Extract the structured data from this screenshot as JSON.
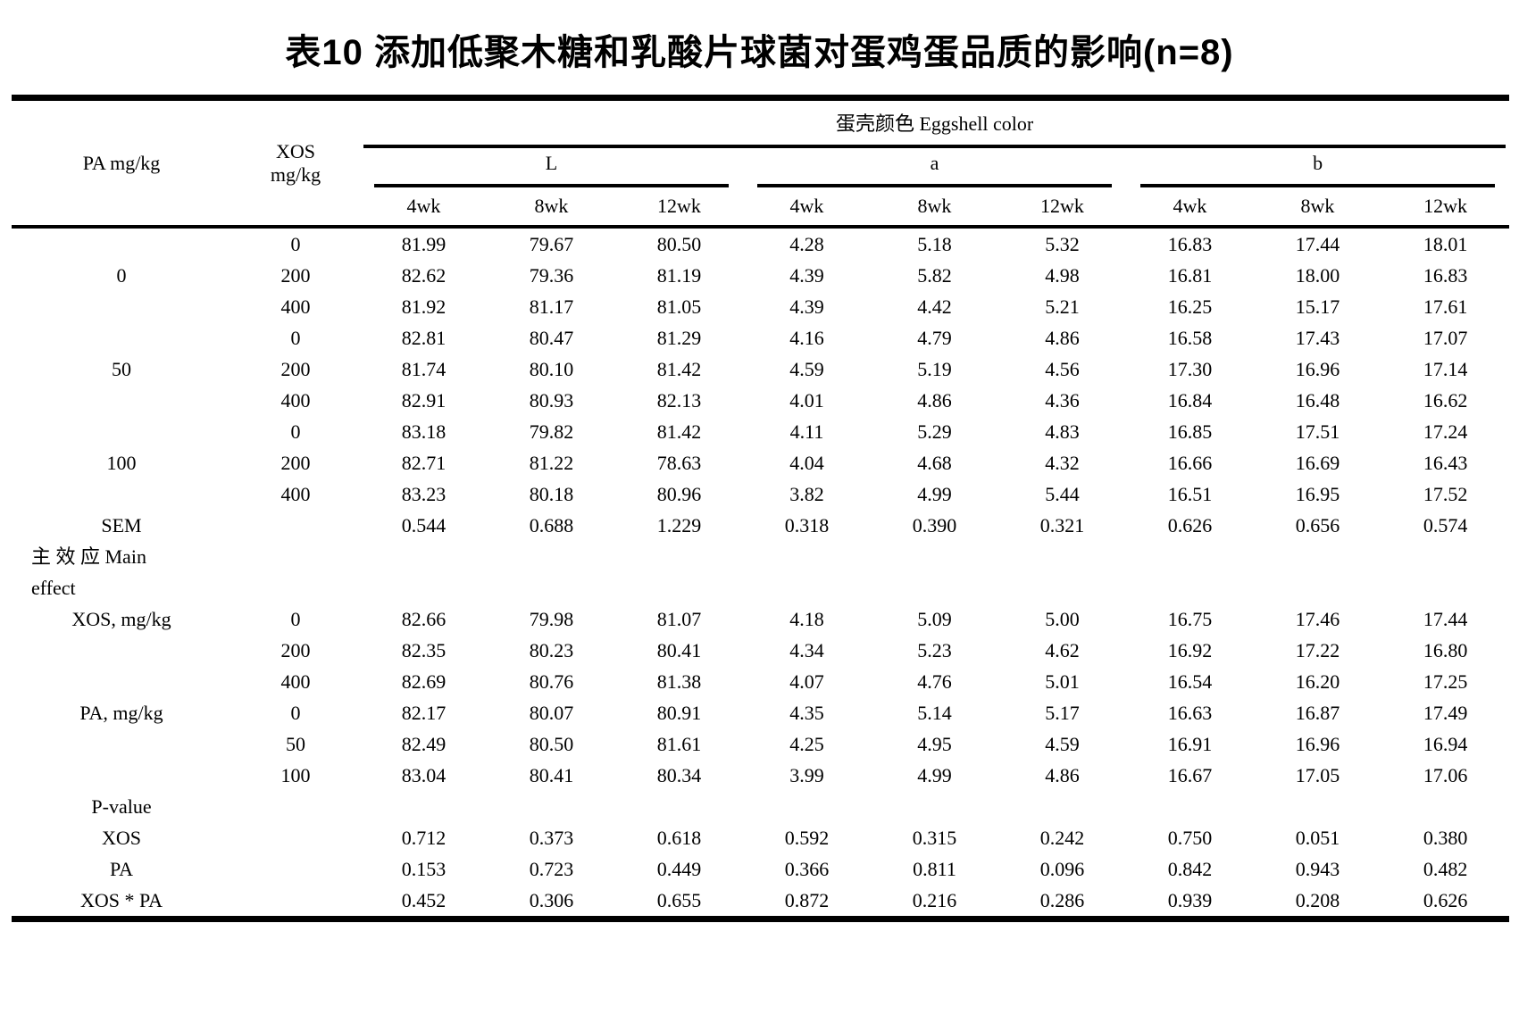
{
  "title": "表10 添加低聚木糖和乳酸片球菌对蛋鸡蛋品质的影响(n=8)",
  "table": {
    "header": {
      "pa": "PA mg/kg",
      "xos_line1": "XOS",
      "xos_line2": "mg/kg",
      "group_title": "蛋壳颜色 Eggshell color",
      "subgroups": [
        "L",
        "a",
        "b"
      ],
      "week_labels": [
        "4wk",
        "8wk",
        "12wk"
      ]
    },
    "rows": [
      {
        "cells": [
          "",
          "0",
          "81.99",
          "79.67",
          "80.50",
          "4.28",
          "5.18",
          "5.32",
          "16.83",
          "17.44",
          "18.01"
        ]
      },
      {
        "cells": [
          "0",
          "200",
          "82.62",
          "79.36",
          "81.19",
          "4.39",
          "5.82",
          "4.98",
          "16.81",
          "18.00",
          "16.83"
        ]
      },
      {
        "cells": [
          "",
          "400",
          "81.92",
          "81.17",
          "81.05",
          "4.39",
          "4.42",
          "5.21",
          "16.25",
          "15.17",
          "17.61"
        ]
      },
      {
        "cells": [
          "",
          "0",
          "82.81",
          "80.47",
          "81.29",
          "4.16",
          "4.79",
          "4.86",
          "16.58",
          "17.43",
          "17.07"
        ]
      },
      {
        "cells": [
          "50",
          "200",
          "81.74",
          "80.10",
          "81.42",
          "4.59",
          "5.19",
          "4.56",
          "17.30",
          "16.96",
          "17.14"
        ]
      },
      {
        "cells": [
          "",
          "400",
          "82.91",
          "80.93",
          "82.13",
          "4.01",
          "4.86",
          "4.36",
          "16.84",
          "16.48",
          "16.62"
        ]
      },
      {
        "cells": [
          "",
          "0",
          "83.18",
          "79.82",
          "81.42",
          "4.11",
          "5.29",
          "4.83",
          "16.85",
          "17.51",
          "17.24"
        ]
      },
      {
        "cells": [
          "100",
          "200",
          "82.71",
          "81.22",
          "78.63",
          "4.04",
          "4.68",
          "4.32",
          "16.66",
          "16.69",
          "16.43"
        ]
      },
      {
        "cells": [
          "",
          "400",
          "83.23",
          "80.18",
          "80.96",
          "3.82",
          "4.99",
          "5.44",
          "16.51",
          "16.95",
          "17.52"
        ]
      },
      {
        "cells": [
          "SEM",
          "",
          "0.544",
          "0.688",
          "1.229",
          "0.318",
          "0.390",
          "0.321",
          "0.626",
          "0.656",
          "0.574"
        ]
      },
      {
        "span": true,
        "text": "主 效 应 Main effect"
      },
      {
        "cells": [
          "XOS, mg/kg",
          "0",
          "82.66",
          "79.98",
          "81.07",
          "4.18",
          "5.09",
          "5.00",
          "16.75",
          "17.46",
          "17.44"
        ]
      },
      {
        "cells": [
          "",
          "200",
          "82.35",
          "80.23",
          "80.41",
          "4.34",
          "5.23",
          "4.62",
          "16.92",
          "17.22",
          "16.80"
        ]
      },
      {
        "cells": [
          "",
          "400",
          "82.69",
          "80.76",
          "81.38",
          "4.07",
          "4.76",
          "5.01",
          "16.54",
          "16.20",
          "17.25"
        ]
      },
      {
        "cells": [
          "PA, mg/kg",
          "0",
          "82.17",
          "80.07",
          "80.91",
          "4.35",
          "5.14",
          "5.17",
          "16.63",
          "16.87",
          "17.49"
        ]
      },
      {
        "cells": [
          "",
          "50",
          "82.49",
          "80.50",
          "81.61",
          "4.25",
          "4.95",
          "4.59",
          "16.91",
          "16.96",
          "16.94"
        ]
      },
      {
        "cells": [
          "",
          "100",
          "83.04",
          "80.41",
          "80.34",
          "3.99",
          "4.99",
          "4.86",
          "16.67",
          "17.05",
          "17.06"
        ]
      },
      {
        "cells": [
          "P-value",
          "",
          "",
          "",
          "",
          "",
          "",
          "",
          "",
          "",
          ""
        ]
      },
      {
        "cells": [
          "XOS",
          "",
          "0.712",
          "0.373",
          "0.618",
          "0.592",
          "0.315",
          "0.242",
          "0.750",
          "0.051",
          "0.380"
        ]
      },
      {
        "cells": [
          "PA",
          "",
          "0.153",
          "0.723",
          "0.449",
          "0.366",
          "0.811",
          "0.096",
          "0.842",
          "0.943",
          "0.482"
        ]
      },
      {
        "cells": [
          "XOS * PA",
          "",
          "0.452",
          "0.306",
          "0.655",
          "0.872",
          "0.216",
          "0.286",
          "0.939",
          "0.208",
          "0.626"
        ]
      }
    ]
  }
}
